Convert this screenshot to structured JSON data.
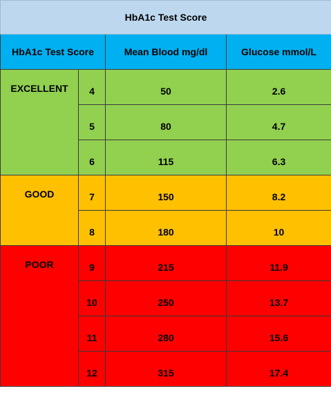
{
  "title": "HbA1c Test Score",
  "headers": {
    "score": "HbA1c Test Score",
    "mean": "Mean Blood mg/dl",
    "glucose": "Glucose mmol/L"
  },
  "colors": {
    "title_bg": "#bdd7ee",
    "header_bg": "#00b0f0",
    "excellent": "#92d050",
    "good": "#ffc000",
    "poor": "#ff0000"
  },
  "groups": [
    {
      "label": "EXCELLENT",
      "color": "#92d050",
      "rows": [
        {
          "score": "4",
          "mean": "50",
          "glucose": "2.6"
        },
        {
          "score": "5",
          "mean": "80",
          "glucose": "4.7"
        },
        {
          "score": "6",
          "mean": "115",
          "glucose": "6.3"
        }
      ]
    },
    {
      "label": "GOOD",
      "color": "#ffc000",
      "rows": [
        {
          "score": "7",
          "mean": "150",
          "glucose": "8.2"
        },
        {
          "score": "8",
          "mean": "180",
          "glucose": "10"
        }
      ]
    },
    {
      "label": "POOR",
      "color": "#ff0000",
      "rows": [
        {
          "score": "9",
          "mean": "215",
          "glucose": "11.9"
        },
        {
          "score": "10",
          "mean": "250",
          "glucose": "13.7"
        },
        {
          "score": "11",
          "mean": "280",
          "glucose": "15.6"
        },
        {
          "score": "12",
          "mean": "315",
          "glucose": "17.4"
        }
      ]
    }
  ]
}
